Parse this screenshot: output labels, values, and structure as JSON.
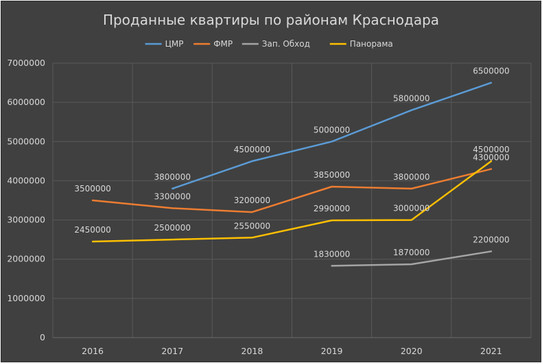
{
  "chart_data": {
    "type": "line",
    "title": "Проданные квартиры по районам Краснодара",
    "xlabel": "",
    "ylabel": "",
    "categories": [
      "2016",
      "2017",
      "2018",
      "2019",
      "2020",
      "2021"
    ],
    "ylim": [
      0,
      7000000
    ],
    "yticks": [
      "0",
      "1000000",
      "2000000",
      "3000000",
      "4000000",
      "5000000",
      "6000000",
      "7000000"
    ],
    "grid": true,
    "legend_position": "top",
    "series": [
      {
        "name": "ЦМР",
        "color": "#5b9bd5",
        "values": [
          null,
          3800000,
          4500000,
          5000000,
          5800000,
          6500000
        ],
        "labels": [
          "",
          "3800000",
          "4500000",
          "5000000",
          "5800000",
          "6500000"
        ]
      },
      {
        "name": "ФМР",
        "color": "#ed7d31",
        "values": [
          3500000,
          3300000,
          3200000,
          3850000,
          3800000,
          4300000
        ],
        "labels": [
          "3500000",
          "3300000",
          "3200000",
          "3850000",
          "3800000",
          "4300000"
        ]
      },
      {
        "name": "Зап. Обход",
        "color": "#a5a5a5",
        "values": [
          null,
          null,
          null,
          1830000,
          1870000,
          2200000
        ],
        "labels": [
          "",
          "",
          "",
          "1830000",
          "1870000",
          "2200000"
        ]
      },
      {
        "name": "Панорама",
        "color": "#ffc000",
        "values": [
          2450000,
          2500000,
          2550000,
          2990000,
          3000000,
          4500000
        ],
        "labels": [
          "2450000",
          "2500000",
          "2550000",
          "2990000",
          "3000000",
          "4500000"
        ]
      }
    ]
  }
}
